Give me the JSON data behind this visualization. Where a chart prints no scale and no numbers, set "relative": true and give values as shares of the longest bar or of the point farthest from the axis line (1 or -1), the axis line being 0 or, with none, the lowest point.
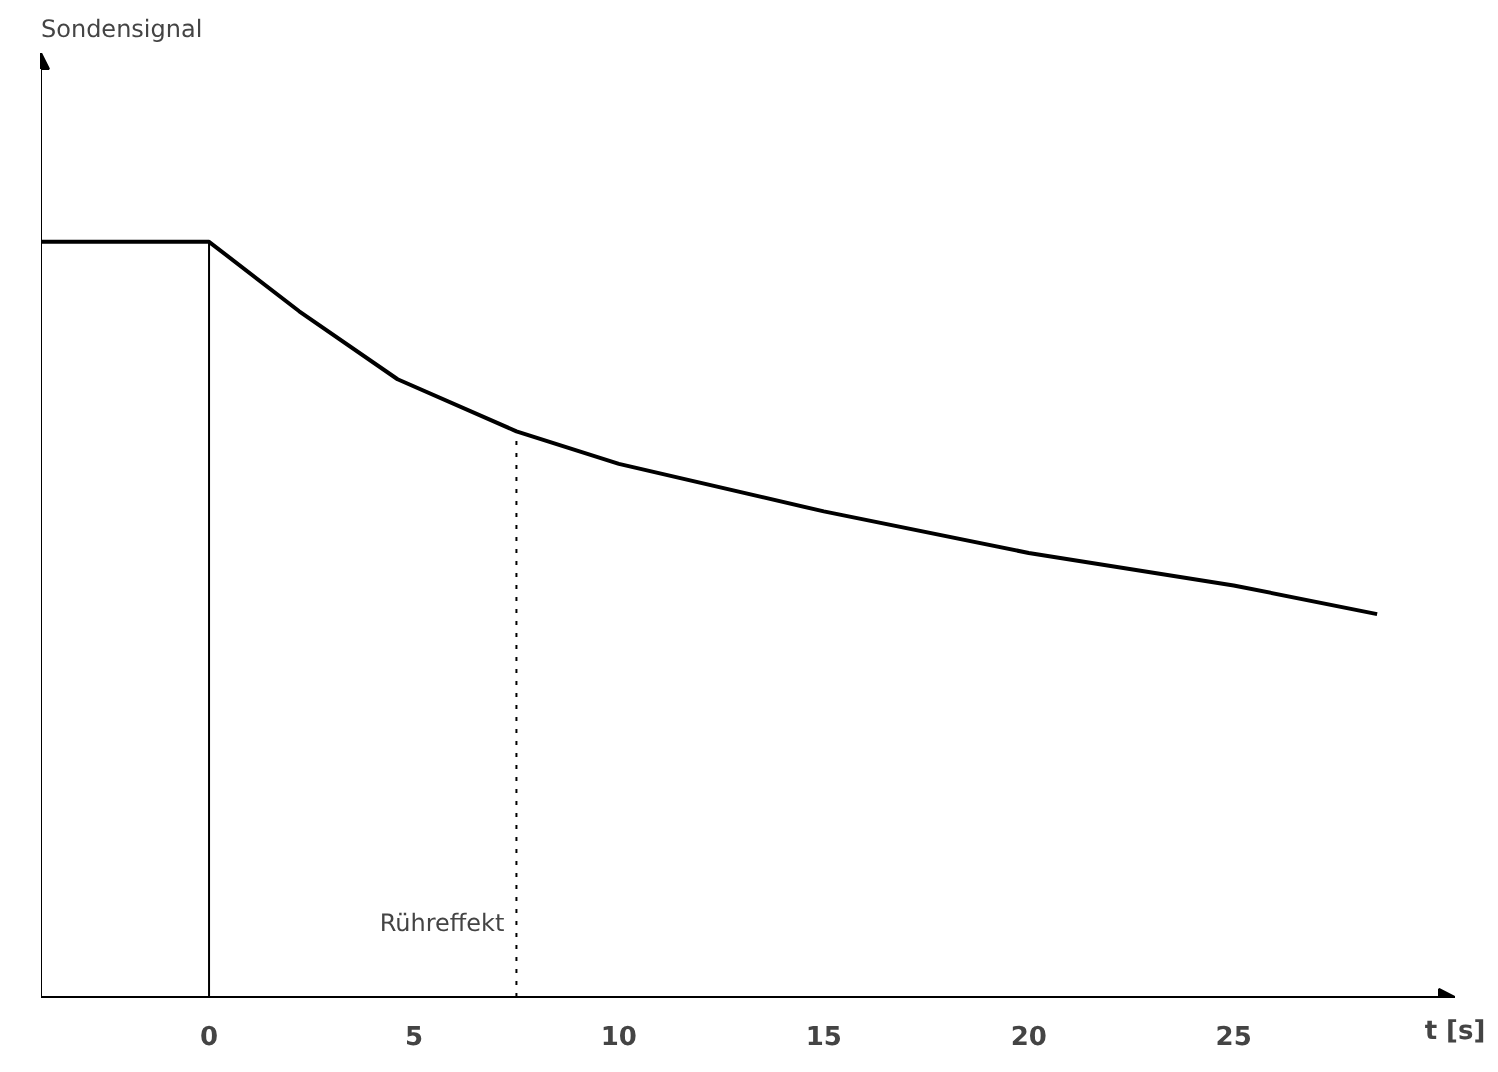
{
  "chart_data": {
    "type": "line",
    "annotations": [
      "Sondensignal"
    ],
    "xlabel": "t [s]",
    "relative": true,
    "grid": false,
    "marker": "none",
    "line_style": "solid",
    "xlim": [
      -4.1,
      30.4
    ],
    "xticks": [
      0,
      5,
      10,
      15,
      20,
      25
    ],
    "series": [
      {
        "color": "#000000",
        "x": [
          -4.1,
          0,
          2.2,
          4.6,
          7.5,
          10,
          15,
          20,
          25,
          28.5
        ],
        "values": [
          1.0,
          1.0,
          0.908,
          0.818,
          0.749,
          0.706,
          0.643,
          0.588,
          0.545,
          0.507
        ]
      }
    ],
    "ref_lines": [
      {
        "axis": "x",
        "value": 0,
        "label": null,
        "line_style": "solid",
        "color": "#000000"
      },
      {
        "axis": "x",
        "value": 7.5,
        "label": "Rühreffekt",
        "line_style": "dotted",
        "color": "#000000"
      }
    ]
  }
}
